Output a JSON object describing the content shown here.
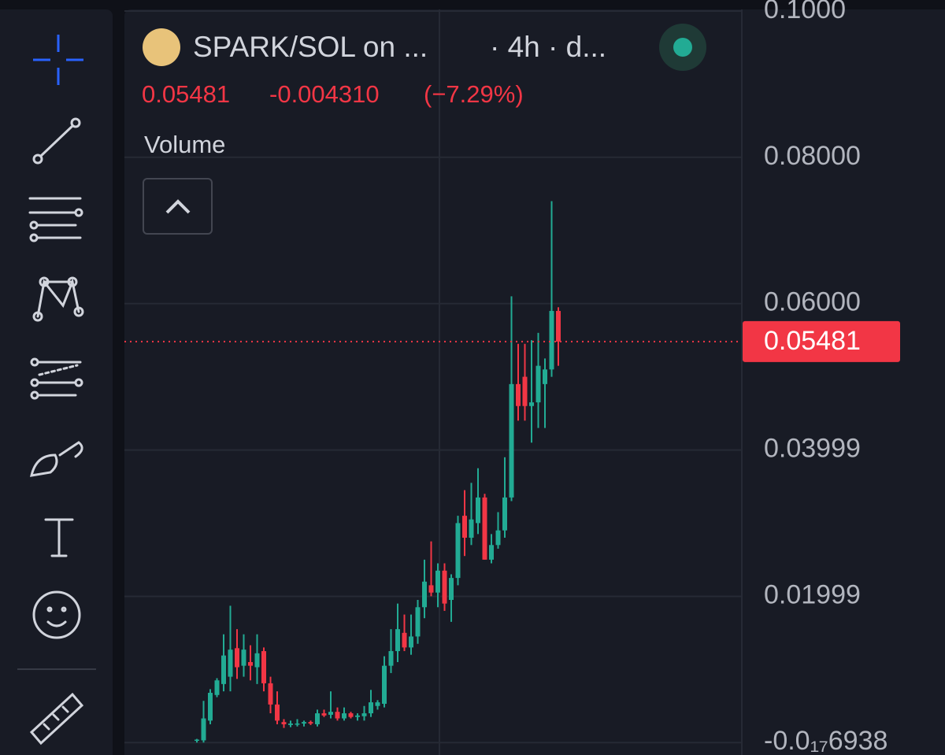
{
  "header": {
    "symbol": "SPARK/SOL on ...",
    "interval": "· 4h · d...",
    "price": "0.05481",
    "change": "-0.004310",
    "change_pct": "(−7.29%)",
    "indicator": "Volume"
  },
  "chart_data": {
    "type": "candlestick",
    "open": [
      0.0003,
      0.0003,
      0.003,
      0.0065,
      0.008,
      0.009,
      0.0129,
      0.0105,
      0.011,
      0.0103,
      0.0125,
      0.0081,
      0.0052,
      0.0028,
      0.0024,
      0.0025,
      0.0026,
      0.0028,
      0.0025,
      0.004,
      0.0038,
      0.0042,
      0.0033,
      0.004,
      0.0035,
      0.0036,
      0.004,
      0.005,
      0.0053,
      0.0105,
      0.0125,
      0.015,
      0.013,
      0.0145,
      0.0185,
      0.0215,
      0.0205,
      0.0235,
      0.0195,
      0.0225,
      0.031,
      0.028,
      0.03,
      0.0335,
      0.025,
      0.027,
      0.029,
      0.0335,
      0.049,
      0.05,
      0.046,
      0.0465,
      0.049,
      0.051,
      0.059
    ],
    "high": [
      0.0005,
      0.0057,
      0.0073,
      0.0088,
      0.0148,
      0.0187,
      0.0155,
      0.0148,
      0.0133,
      0.0148,
      0.013,
      0.009,
      0.007,
      0.0032,
      0.003,
      0.0032,
      0.003,
      0.003,
      0.0045,
      0.0045,
      0.007,
      0.0048,
      0.0048,
      0.0042,
      0.004,
      0.005,
      0.0072,
      0.0058,
      0.0118,
      0.0155,
      0.019,
      0.0175,
      0.0175,
      0.0195,
      0.025,
      0.0275,
      0.0245,
      0.0245,
      0.023,
      0.031,
      0.0345,
      0.0355,
      0.0375,
      0.034,
      0.0285,
      0.0315,
      0.039,
      0.061,
      0.0545,
      0.0545,
      0.055,
      0.056,
      0.0525,
      0.074,
      0.0595
    ],
    "low": [
      0.0,
      0.0,
      0.0025,
      0.0062,
      0.007,
      0.007,
      0.0087,
      0.009,
      0.0085,
      0.008,
      0.007,
      0.004,
      0.0025,
      0.002,
      0.0021,
      0.0022,
      0.0022,
      0.0024,
      0.0022,
      0.0035,
      0.0033,
      0.003,
      0.003,
      0.0033,
      0.003,
      0.003,
      0.0035,
      0.0045,
      0.0048,
      0.0095,
      0.011,
      0.0125,
      0.012,
      0.0135,
      0.017,
      0.02,
      0.0185,
      0.018,
      0.0165,
      0.0215,
      0.0255,
      0.027,
      0.0285,
      0.025,
      0.0245,
      0.0265,
      0.028,
      0.033,
      0.044,
      0.044,
      0.041,
      0.043,
      0.043,
      0.05,
      0.0515
    ],
    "close": [
      0.0004,
      0.0033,
      0.0068,
      0.0085,
      0.0119,
      0.0127,
      0.0103,
      0.0127,
      0.0105,
      0.0122,
      0.0081,
      0.0052,
      0.003,
      0.0025,
      0.0026,
      0.0026,
      0.0028,
      0.0026,
      0.004,
      0.0037,
      0.0042,
      0.0033,
      0.004,
      0.0035,
      0.0037,
      0.004,
      0.0055,
      0.0055,
      0.0105,
      0.0125,
      0.0155,
      0.013,
      0.0145,
      0.0185,
      0.022,
      0.0205,
      0.0235,
      0.019,
      0.0225,
      0.03,
      0.028,
      0.0305,
      0.0335,
      0.025,
      0.027,
      0.029,
      0.0335,
      0.049,
      0.046,
      0.046,
      0.0465,
      0.0515,
      0.051,
      0.059,
      0.05481
    ],
    "up_color": "#22ab94",
    "down_color": "#f23645",
    "ylim": [
      -0.0017,
      0.1015
    ],
    "yticks": [
      {
        "value": 0.1,
        "label": "0.1000"
      },
      {
        "value": 0.08,
        "label": "0.08000"
      },
      {
        "value": 0.06,
        "label": "0.06000"
      },
      0.03999,
      0.01999,
      {
        "value": -6.938e-18,
        "label": "-0.0₁₇6938"
      }
    ],
    "grid": true,
    "last_price": 0.05481
  }
}
